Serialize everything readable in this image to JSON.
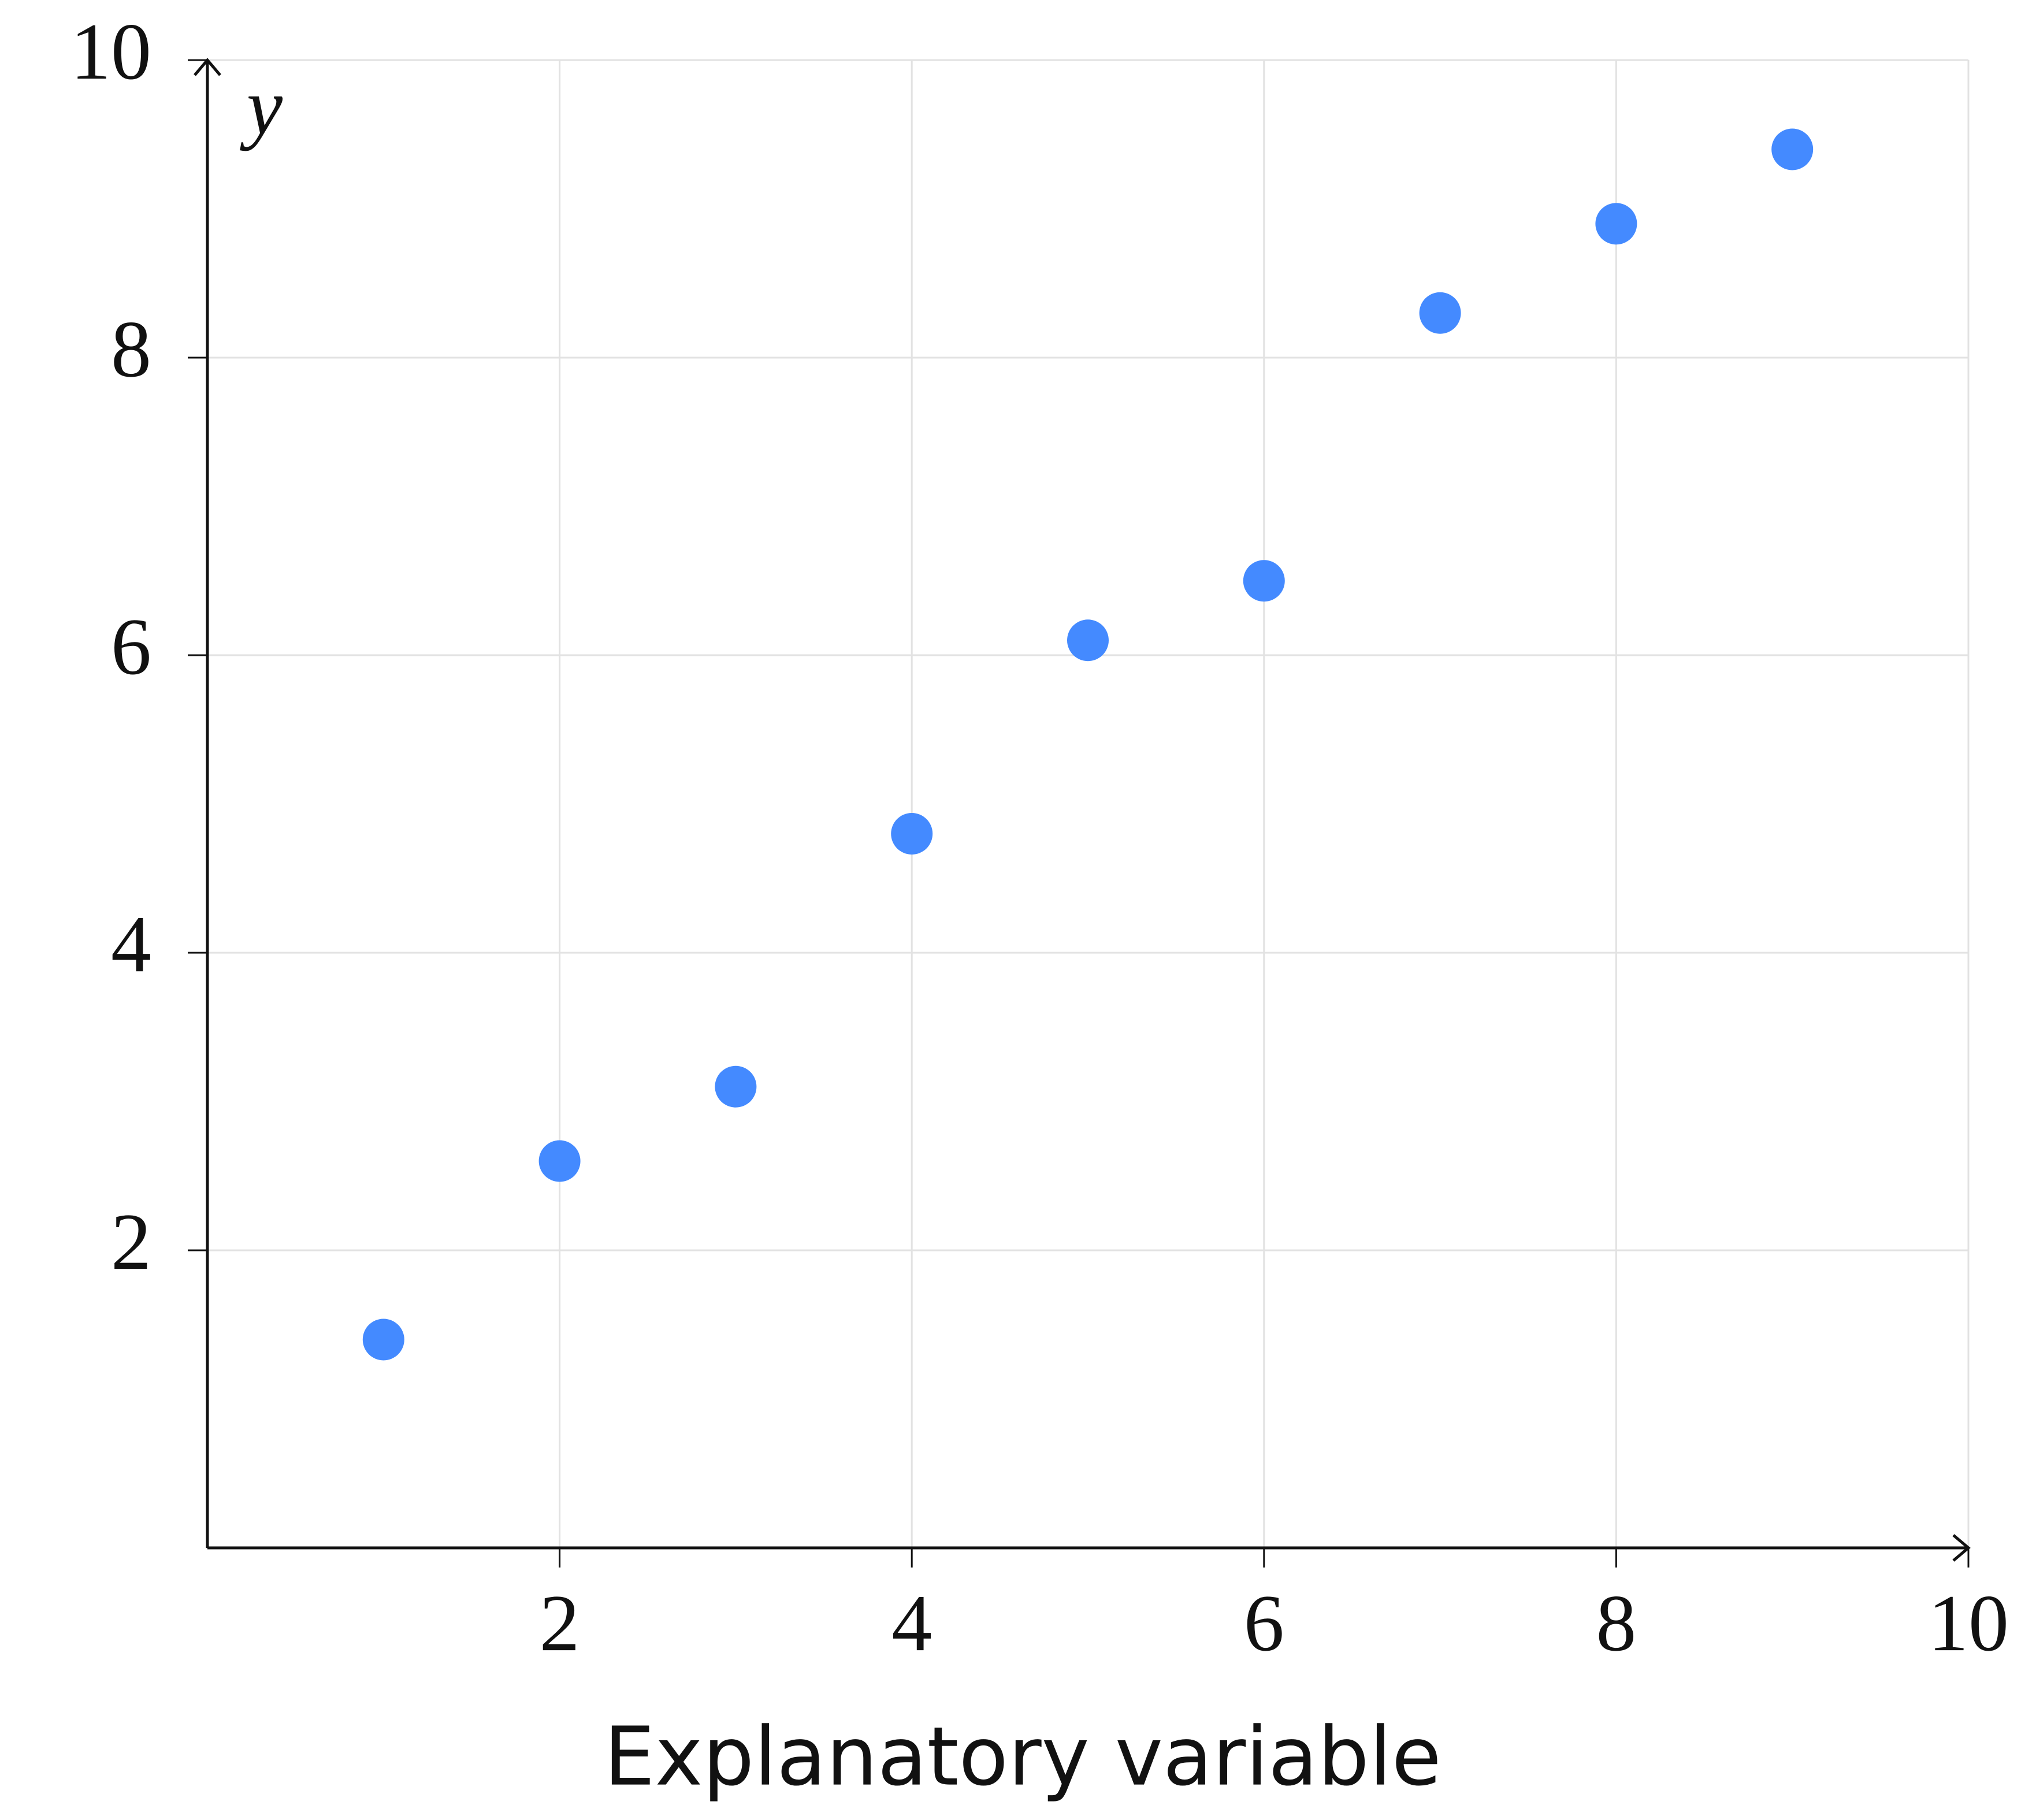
{
  "chart_data": {
    "type": "scatter",
    "x_label": "Explanatory variable",
    "y_label": "y",
    "x": [
      1,
      2,
      3,
      4,
      5,
      6,
      7,
      8,
      9
    ],
    "series": [
      {
        "color": "#448aff",
        "values": [
          1.4,
          2.6,
          3.1,
          4.8,
          6.1,
          6.5,
          8.3,
          8.9,
          9.4
        ]
      }
    ],
    "xlim": [
      0,
      10
    ],
    "ylim": [
      0,
      10
    ],
    "xticks": [
      2,
      4,
      6,
      8,
      10
    ],
    "yticks": [
      2,
      4,
      6,
      8,
      10
    ],
    "grid": true
  }
}
